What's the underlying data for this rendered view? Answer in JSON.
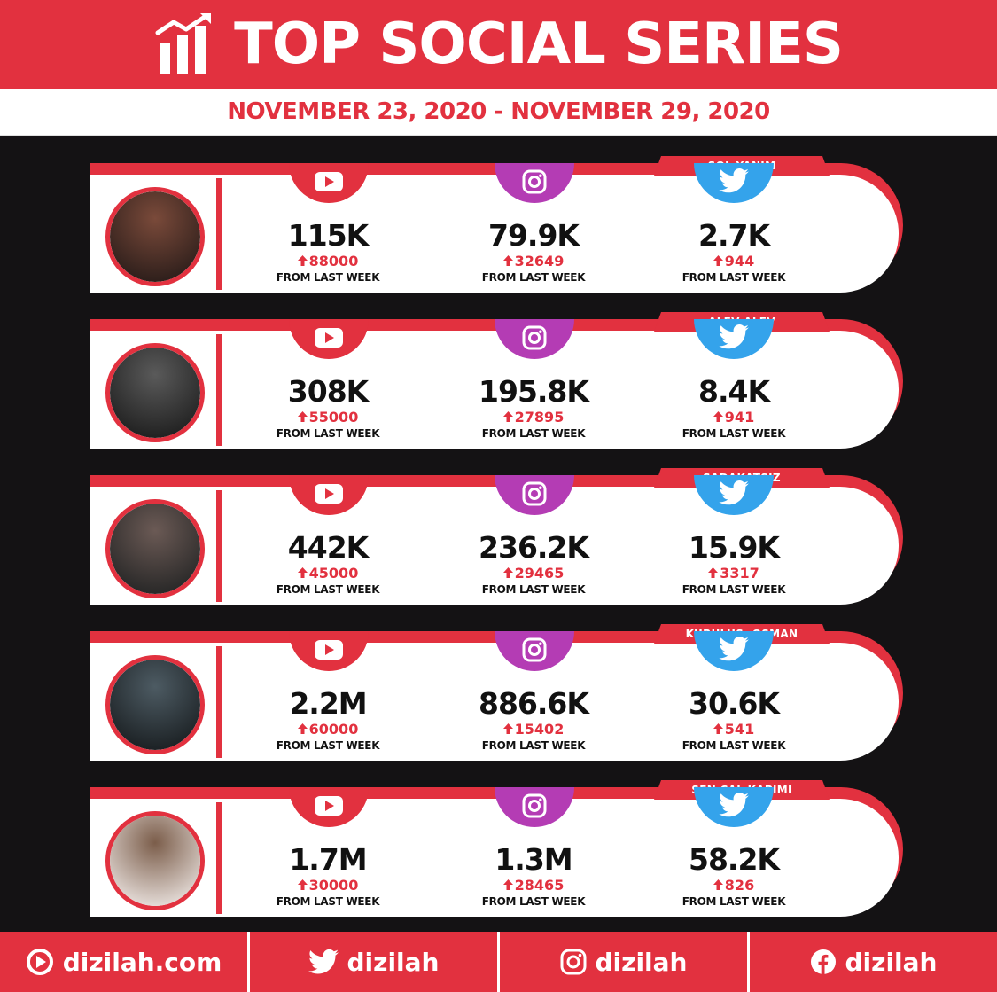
{
  "header": {
    "title": "TOP SOCIAL SERIES",
    "icon": "bar-chart-growth-icon"
  },
  "date_range": "NOVEMBER 23, 2020 - NOVEMBER 29, 2020",
  "colors": {
    "brand": "#e2313f",
    "youtube": "#e2313f",
    "instagram": "#b43cb4",
    "twitter": "#34a3eb"
  },
  "rows": [
    {
      "name": "SOL YANIM",
      "youtube": {
        "total": "115K",
        "change": "88000",
        "note": "FROM LAST WEEK"
      },
      "instagram": {
        "total": "79.9K",
        "change": "32649",
        "note": "FROM LAST WEEK"
      },
      "twitter": {
        "total": "2.7K",
        "change": "944",
        "note": "FROM LAST WEEK"
      }
    },
    {
      "name": "ALEV ALEV",
      "youtube": {
        "total": "308K",
        "change": "55000",
        "note": "FROM LAST WEEK"
      },
      "instagram": {
        "total": "195.8K",
        "change": "27895",
        "note": "FROM LAST WEEK"
      },
      "twitter": {
        "total": "8.4K",
        "change": "941",
        "note": "FROM LAST WEEK"
      }
    },
    {
      "name": "SADAKATSIZ",
      "youtube": {
        "total": "442K",
        "change": "45000",
        "note": "FROM LAST WEEK"
      },
      "instagram": {
        "total": "236.2K",
        "change": "29465",
        "note": "FROM LAST WEEK"
      },
      "twitter": {
        "total": "15.9K",
        "change": "3317",
        "note": "FROM LAST WEEK"
      }
    },
    {
      "name": "KURULUŞ: OSMAN",
      "youtube": {
        "total": "2.2M",
        "change": "60000",
        "note": "FROM LAST WEEK"
      },
      "instagram": {
        "total": "886.6K",
        "change": "15402",
        "note": "FROM LAST WEEK"
      },
      "twitter": {
        "total": "30.6K",
        "change": "541",
        "note": "FROM LAST WEEK"
      }
    },
    {
      "name": "SEN ÇAL KAPIMI",
      "youtube": {
        "total": "1.7M",
        "change": "30000",
        "note": "FROM LAST WEEK"
      },
      "instagram": {
        "total": "1.3M",
        "change": "28465",
        "note": "FROM LAST WEEK"
      },
      "twitter": {
        "total": "58.2K",
        "change": "826",
        "note": "FROM LAST WEEK"
      }
    }
  ],
  "footer": [
    {
      "label": "dizilah.com",
      "icon": "dizilah-logo-icon"
    },
    {
      "label": "dizilah",
      "icon": "twitter-icon"
    },
    {
      "label": "dizilah",
      "icon": "instagram-icon"
    },
    {
      "label": "dizilah",
      "icon": "facebook-icon"
    }
  ]
}
